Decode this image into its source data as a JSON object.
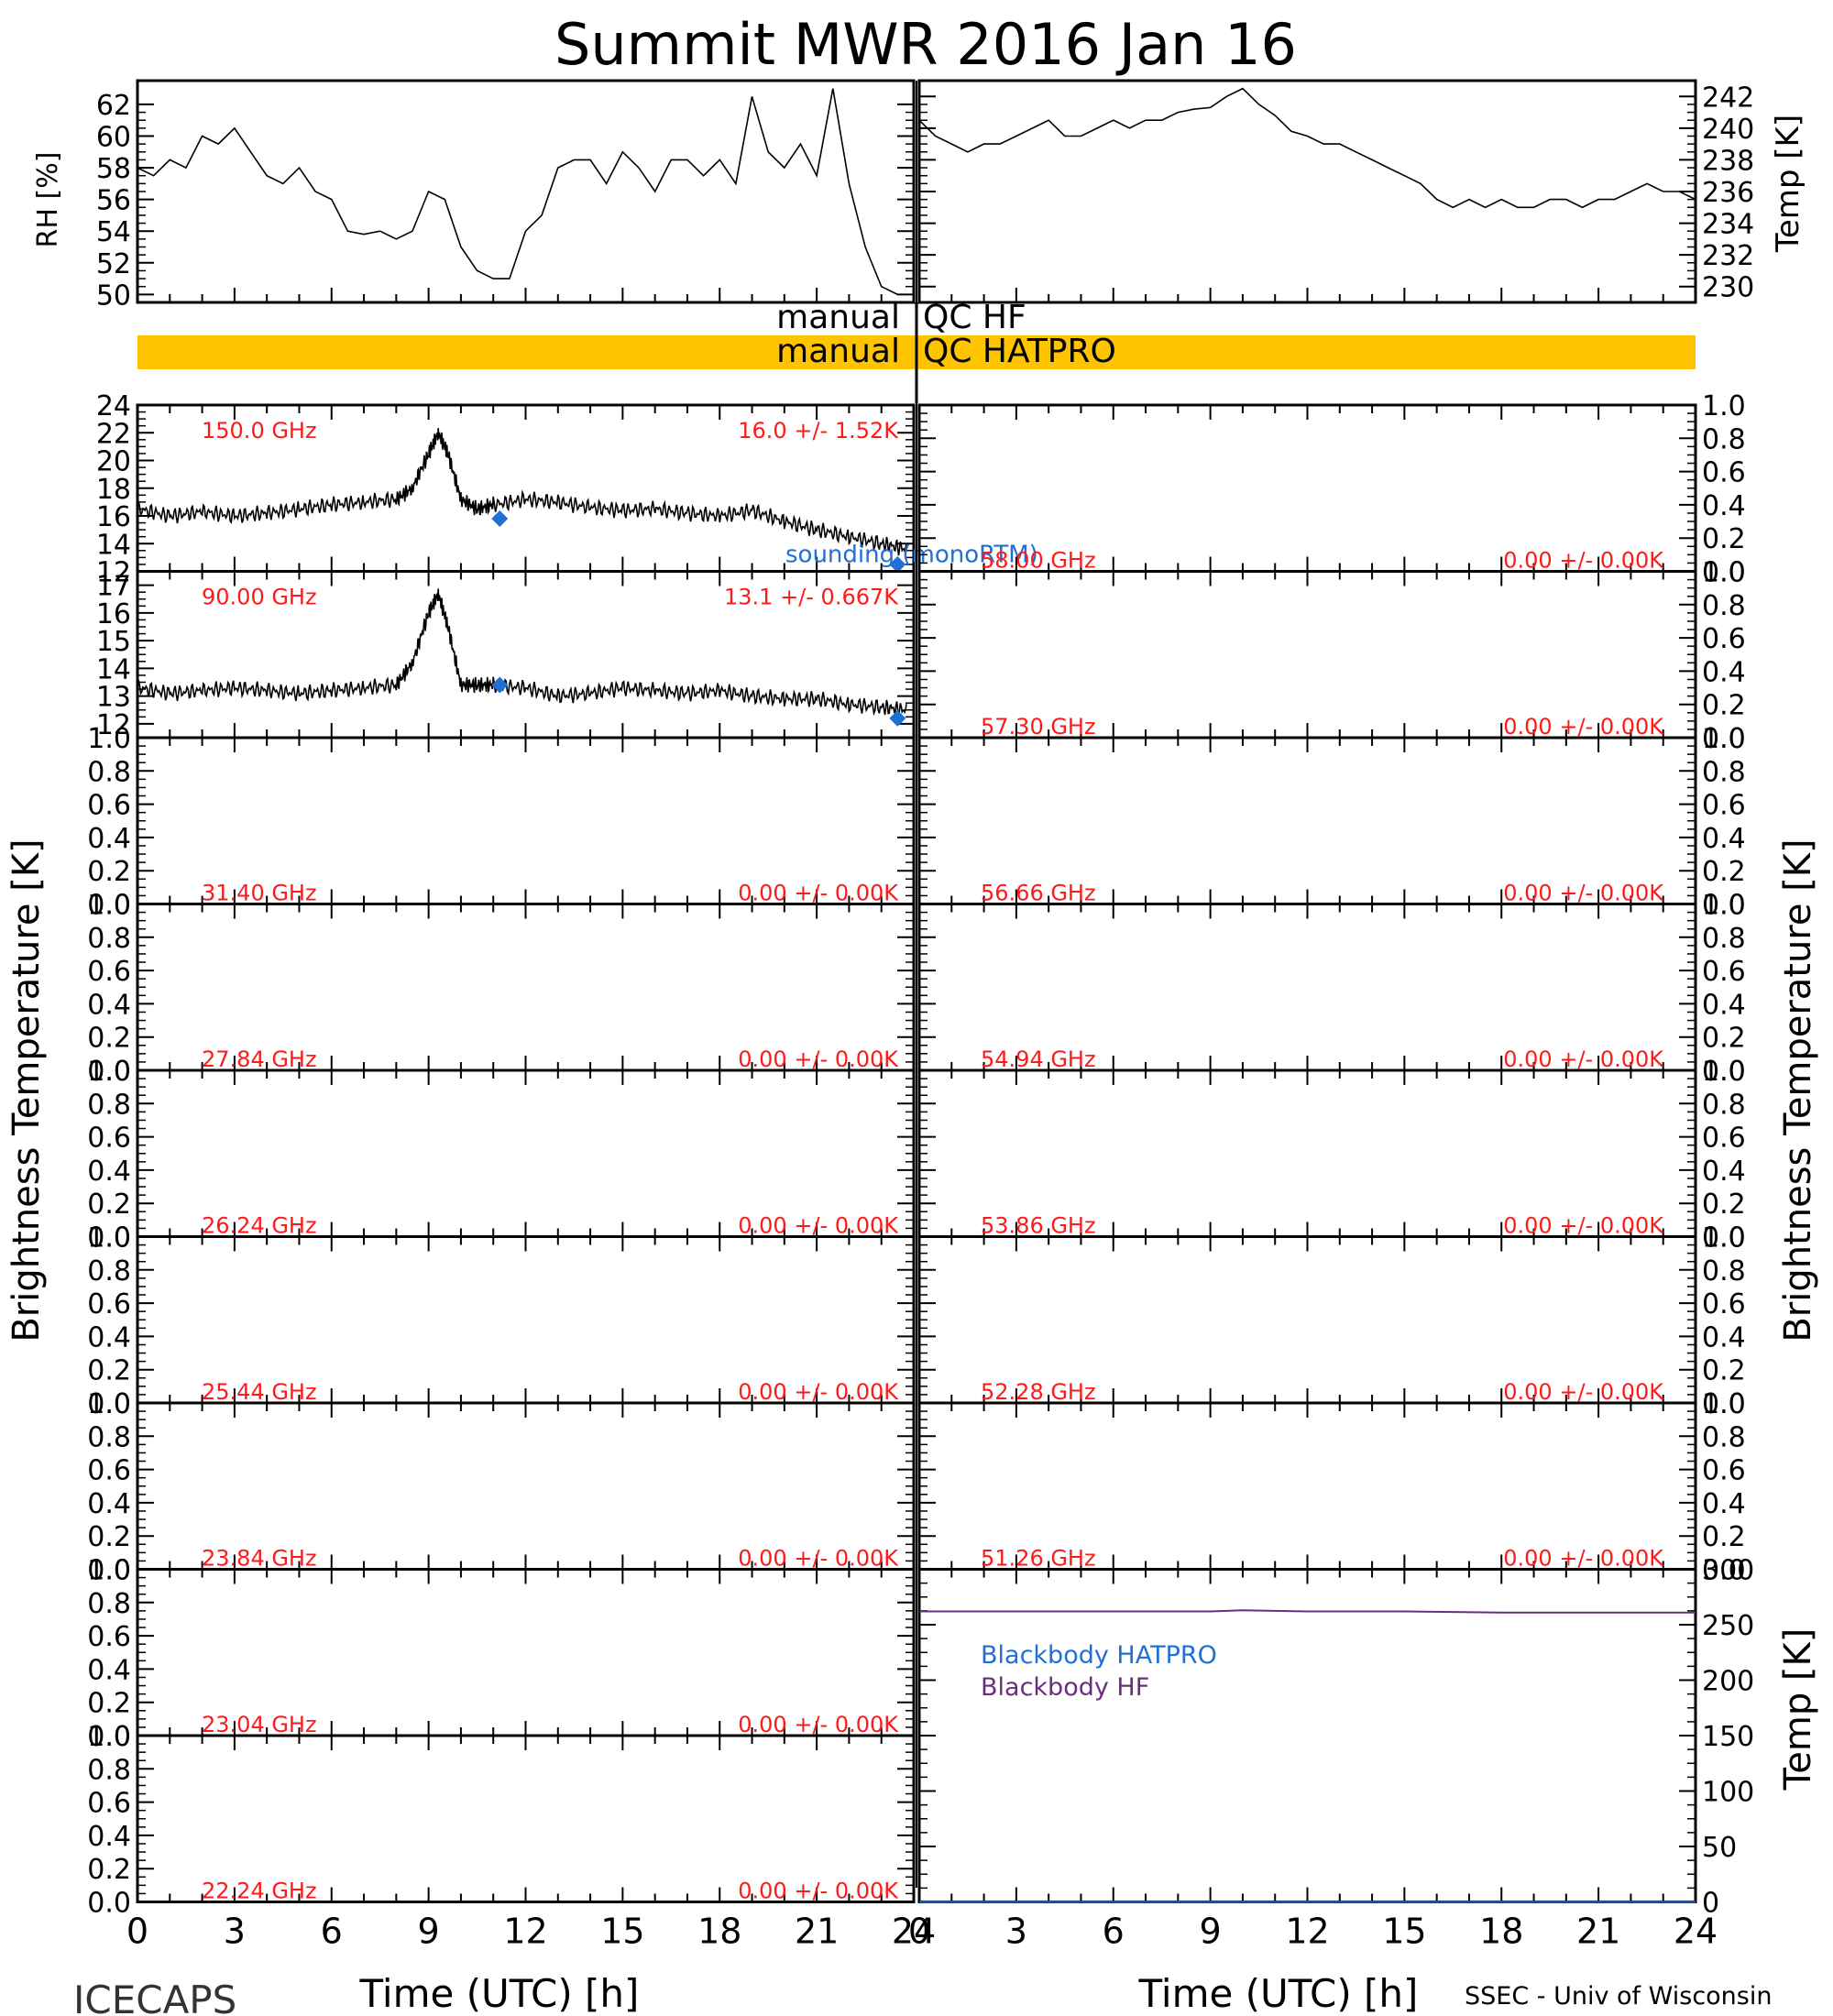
{
  "title": "Summit MWR 2016 Jan 16",
  "footer": {
    "left": "ICECAPS",
    "right": "SSEC - Univ of Wisconsin"
  },
  "x_axis": {
    "label": "Time (UTC) [h]",
    "min": 0,
    "max": 24,
    "ticks": [
      "0",
      "3",
      "6",
      "9",
      "12",
      "15",
      "18",
      "21",
      "24"
    ]
  },
  "flags": {
    "hf_label": "manual",
    "hf_name": "QC HF",
    "hatpro_label": "manual",
    "hatpro_name": "QC HATPRO",
    "hatpro_bar_color": "#ffc400"
  },
  "colors": {
    "channel_text": "#ff1a1a",
    "sounding": "#1f6fd6",
    "blackbody_hatpro": "#1f6fd6",
    "blackbody_hf": "#6a2d80"
  },
  "chart_data": [
    {
      "type": "line",
      "panel": "rh",
      "ylabel": "RH [%]",
      "ylim": [
        49.5,
        63.5
      ],
      "yticks": [
        "50",
        "52",
        "54",
        "56",
        "58",
        "60",
        "62"
      ],
      "x": [
        0,
        0.5,
        1,
        1.5,
        2,
        2.5,
        3,
        3.5,
        4,
        4.5,
        5,
        5.5,
        6,
        6.5,
        7,
        7.5,
        8,
        8.5,
        9,
        9.5,
        10,
        10.5,
        11,
        11.5,
        12,
        12.5,
        13,
        13.5,
        14,
        14.5,
        15,
        15.5,
        16,
        16.5,
        17,
        17.5,
        18,
        18.5,
        19,
        19.5,
        20,
        20.5,
        21,
        21.5,
        22,
        22.5,
        23,
        23.5
      ],
      "values": [
        58,
        57.5,
        58.5,
        58,
        60,
        59.5,
        60.5,
        59,
        57.5,
        57,
        58,
        56.5,
        56,
        54,
        53.8,
        54,
        53.5,
        54,
        56.5,
        56,
        53,
        51.5,
        51,
        51,
        54,
        55,
        58,
        58.5,
        58.5,
        57,
        59,
        58,
        56.5,
        58.5,
        58.5,
        57.5,
        58.5,
        57,
        62.5,
        59,
        58,
        59.5,
        57.5,
        63,
        57,
        53,
        50.5,
        50
      ]
    },
    {
      "type": "line",
      "panel": "temp",
      "ylabel": "Temp [K]",
      "ylim": [
        229,
        243
      ],
      "yticks": [
        "230",
        "232",
        "234",
        "236",
        "238",
        "240",
        "242"
      ],
      "x": [
        0,
        0.5,
        1,
        1.5,
        2,
        2.5,
        3,
        3.5,
        4,
        4.5,
        5,
        5.5,
        6,
        6.5,
        7,
        7.5,
        8,
        8.5,
        9,
        9.5,
        10,
        10.5,
        11,
        11.5,
        12,
        12.5,
        13,
        13.5,
        14,
        14.5,
        15,
        15.5,
        16,
        16.5,
        17,
        17.5,
        18,
        18.5,
        19,
        19.5,
        20,
        20.5,
        21,
        21.5,
        22,
        22.5,
        23,
        23.5,
        24
      ],
      "values": [
        240.5,
        239.5,
        239,
        238.5,
        239,
        239,
        239.5,
        240,
        240.5,
        239.5,
        239.5,
        240,
        240.5,
        240,
        240.5,
        240.5,
        241,
        241.2,
        241.3,
        242,
        242.5,
        241.5,
        240.8,
        239.8,
        239.5,
        239,
        239,
        238.5,
        238,
        237.5,
        237,
        236.5,
        235.5,
        235,
        235.5,
        235,
        235.5,
        235,
        235,
        235.5,
        235.5,
        235,
        235.5,
        235.5,
        236,
        236.5,
        236,
        236,
        235.5
      ]
    },
    {
      "type": "line",
      "panel": "tb",
      "channel": "150.0 GHz",
      "stats": "16.0 +/-  1.52K",
      "ylim": [
        12,
        24
      ],
      "yticks": [
        "12",
        "14",
        "16",
        "18",
        "20",
        "22",
        "24"
      ],
      "x": [
        0,
        1,
        2,
        3,
        4,
        5,
        6,
        7,
        8,
        8.5,
        9,
        9.3,
        9.6,
        10,
        10.5,
        11,
        12,
        13,
        14,
        15,
        16,
        17,
        18,
        19,
        20,
        21,
        22,
        23,
        23.8
      ],
      "values": [
        16.5,
        16,
        16.3,
        16,
        16.2,
        16.5,
        16.8,
        17,
        17.2,
        18,
        20.5,
        22,
        20.5,
        17.2,
        16.5,
        16.8,
        17.2,
        17,
        16.6,
        16.4,
        16.5,
        16.2,
        16,
        16.4,
        15.6,
        15,
        14.5,
        14,
        13.6
      ],
      "sounding": [
        [
          11.2,
          15.8
        ],
        [
          23.5,
          12.5
        ]
      ],
      "sounding_label": "sounding (monoRTM)"
    },
    {
      "type": "line",
      "panel": "tb",
      "channel": "90.00 GHz",
      "stats": "13.1 +/- 0.667K",
      "ylim": [
        11.5,
        17.5
      ],
      "yticks": [
        "12",
        "13",
        "14",
        "15",
        "16",
        "17"
      ],
      "x": [
        0,
        1,
        2,
        3,
        4,
        5,
        6,
        7,
        8,
        8.5,
        9,
        9.3,
        9.6,
        10,
        10.5,
        11,
        12,
        13,
        14,
        15,
        16,
        17,
        18,
        19,
        20,
        21,
        22,
        23,
        23.8
      ],
      "values": [
        13.3,
        13.1,
        13.2,
        13.3,
        13.2,
        13.1,
        13.2,
        13.3,
        13.4,
        14.2,
        16,
        16.7,
        15.5,
        13.4,
        13.4,
        13.4,
        13.3,
        13,
        13.1,
        13.3,
        13.2,
        13.1,
        13.2,
        13,
        12.9,
        12.9,
        12.7,
        12.6,
        12.5
      ],
      "sounding": [
        [
          11.2,
          13.4
        ],
        [
          23.5,
          12.2
        ]
      ]
    },
    {
      "type": "line",
      "panel": "tb",
      "channel": "31.40 GHz",
      "stats": "0.00 +/-  0.00K",
      "ylim": [
        0,
        1
      ],
      "yticks": [
        "0.0",
        "0.2",
        "0.4",
        "0.6",
        "0.8",
        "1.0"
      ]
    },
    {
      "type": "line",
      "panel": "tb",
      "channel": "27.84 GHz",
      "stats": "0.00 +/-  0.00K",
      "ylim": [
        0,
        1
      ],
      "yticks": [
        "0.0",
        "0.2",
        "0.4",
        "0.6",
        "0.8",
        "1.0"
      ]
    },
    {
      "type": "line",
      "panel": "tb",
      "channel": "26.24 GHz",
      "stats": "0.00 +/-  0.00K",
      "ylim": [
        0,
        1
      ],
      "yticks": [
        "0.0",
        "0.2",
        "0.4",
        "0.6",
        "0.8",
        "1.0"
      ]
    },
    {
      "type": "line",
      "panel": "tb",
      "channel": "25.44 GHz",
      "stats": "0.00 +/-  0.00K",
      "ylim": [
        0,
        1
      ],
      "yticks": [
        "0.0",
        "0.2",
        "0.4",
        "0.6",
        "0.8",
        "1.0"
      ]
    },
    {
      "type": "line",
      "panel": "tb",
      "channel": "23.84 GHz",
      "stats": "0.00 +/-  0.00K",
      "ylim": [
        0,
        1
      ],
      "yticks": [
        "0.0",
        "0.2",
        "0.4",
        "0.6",
        "0.8",
        "1.0"
      ]
    },
    {
      "type": "line",
      "panel": "tb",
      "channel": "23.04 GHz",
      "stats": "0.00 +/-  0.00K",
      "ylim": [
        0,
        1
      ],
      "yticks": [
        "0.0",
        "0.2",
        "0.4",
        "0.6",
        "0.8",
        "1.0"
      ]
    },
    {
      "type": "line",
      "panel": "tb",
      "channel": "22.24 GHz",
      "stats": "0.00 +/-  0.00K",
      "ylim": [
        0,
        1
      ],
      "yticks": [
        "0.0",
        "0.2",
        "0.4",
        "0.6",
        "0.8",
        "1.0"
      ]
    },
    {
      "type": "line",
      "panel": "tb",
      "channel": "58.00 GHz",
      "stats": "0.00 +/-  0.00K",
      "ylim": [
        0,
        1
      ],
      "yticks": [
        "0.0",
        "0.2",
        "0.4",
        "0.6",
        "0.8",
        "1.0"
      ]
    },
    {
      "type": "line",
      "panel": "tb",
      "channel": "57.30 GHz",
      "stats": "0.00 +/-  0.00K",
      "ylim": [
        0,
        1
      ],
      "yticks": [
        "0.0",
        "0.2",
        "0.4",
        "0.6",
        "0.8",
        "1.0"
      ]
    },
    {
      "type": "line",
      "panel": "tb",
      "channel": "56.66 GHz",
      "stats": "0.00 +/-  0.00K",
      "ylim": [
        0,
        1
      ],
      "yticks": [
        "0.0",
        "0.2",
        "0.4",
        "0.6",
        "0.8",
        "1.0"
      ]
    },
    {
      "type": "line",
      "panel": "tb",
      "channel": "54.94 GHz",
      "stats": "0.00 +/-  0.00K",
      "ylim": [
        0,
        1
      ],
      "yticks": [
        "0.0",
        "0.2",
        "0.4",
        "0.6",
        "0.8",
        "1.0"
      ]
    },
    {
      "type": "line",
      "panel": "tb",
      "channel": "53.86 GHz",
      "stats": "0.00 +/-  0.00K",
      "ylim": [
        0,
        1
      ],
      "yticks": [
        "0.0",
        "0.2",
        "0.4",
        "0.6",
        "0.8",
        "1.0"
      ]
    },
    {
      "type": "line",
      "panel": "tb",
      "channel": "52.28 GHz",
      "stats": "0.00 +/-  0.00K",
      "ylim": [
        0,
        1
      ],
      "yticks": [
        "0.0",
        "0.2",
        "0.4",
        "0.6",
        "0.8",
        "1.0"
      ]
    },
    {
      "type": "line",
      "panel": "tb",
      "channel": "51.26 GHz",
      "stats": "0.00 +/-  0.00K",
      "ylim": [
        0,
        1
      ],
      "yticks": [
        "0.0",
        "0.2",
        "0.4",
        "0.6",
        "0.8",
        "1.0"
      ]
    },
    {
      "type": "line",
      "panel": "blackbody",
      "ylabel": "Temp [K]",
      "ylim": [
        0,
        300
      ],
      "yticks": [
        "0",
        "50",
        "100",
        "150",
        "200",
        "250",
        "300"
      ],
      "series": [
        {
          "name": "Blackbody HATPRO",
          "x": [
            0,
            24
          ],
          "values": [
            0,
            0
          ]
        },
        {
          "name": "Blackbody HF",
          "x": [
            0,
            3,
            6,
            9,
            10,
            12,
            15,
            18,
            21,
            24
          ],
          "values": [
            262,
            262,
            262,
            262,
            263,
            262,
            262,
            261,
            261,
            261
          ]
        }
      ]
    }
  ],
  "tb_ylabel": "Brightness Temperature [K]"
}
